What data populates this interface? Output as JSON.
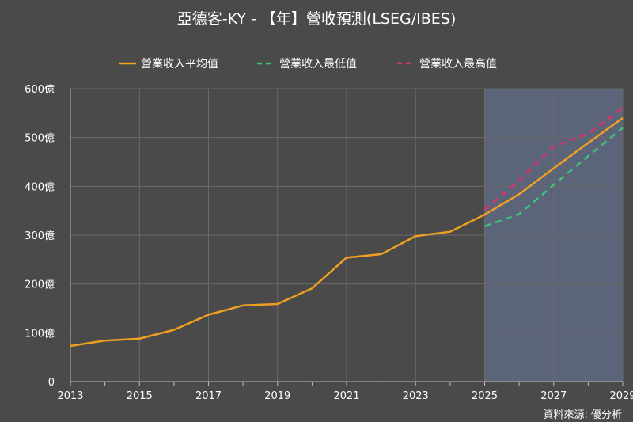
{
  "chart_data": {
    "type": "line",
    "title": "亞德客-KY - 【年】營收預測(LSEG/IBES)",
    "source": "資料來源: 優分析",
    "x": [
      2013,
      2014,
      2015,
      2016,
      2017,
      2018,
      2019,
      2020,
      2021,
      2022,
      2023,
      2024,
      2025,
      2026,
      2027,
      2028,
      2029
    ],
    "xticks": [
      "2013",
      "2015",
      "2017",
      "2019",
      "2021",
      "2023",
      "2025",
      "2027",
      "2029"
    ],
    "yticks": [
      "0",
      "100億",
      "200億",
      "300億",
      "400億",
      "500億",
      "600億"
    ],
    "xlim": [
      2013,
      2029
    ],
    "ylim": [
      0,
      600
    ],
    "forecast_region": [
      2025,
      2029
    ],
    "series": [
      {
        "name": "營業收入平均值",
        "color": "#f0a020",
        "style": "solid",
        "x": [
          2013,
          2014,
          2015,
          2016,
          2017,
          2018,
          2019,
          2020,
          2021,
          2022,
          2023,
          2024,
          2025,
          2026,
          2027,
          2028,
          2029
        ],
        "values": [
          73,
          84,
          88,
          106,
          137,
          156,
          159,
          191,
          254,
          261,
          298,
          307,
          342,
          384,
          437,
          489,
          540
        ]
      },
      {
        "name": "營業收入最低值",
        "color": "#3cc47c",
        "style": "dashed",
        "x": [
          2025,
          2026,
          2027,
          2028,
          2029
        ],
        "values": [
          318,
          343,
          403,
          462,
          520
        ]
      },
      {
        "name": "營業收入最高值",
        "color": "#e03070",
        "style": "dashed",
        "x": [
          2025,
          2026,
          2027,
          2028,
          2029
        ],
        "values": [
          352,
          412,
          482,
          508,
          560
        ]
      }
    ],
    "grid": true,
    "legend_position": "top"
  }
}
